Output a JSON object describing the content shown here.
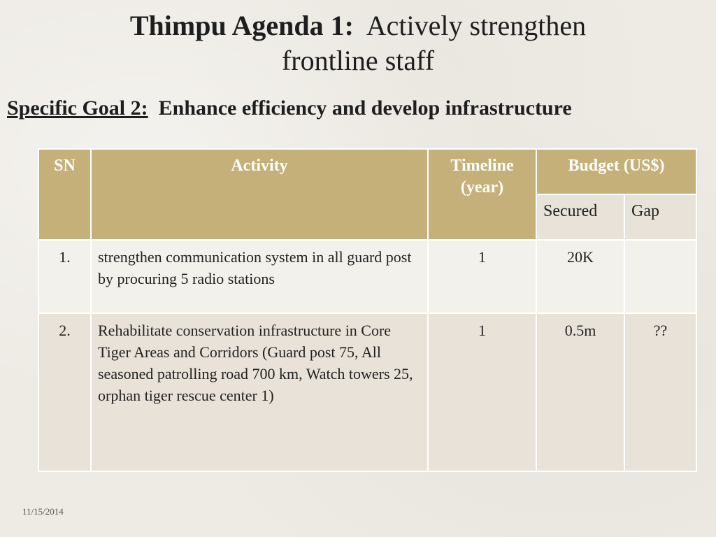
{
  "slide": {
    "title_bold": "Thimpu Agenda 1:",
    "title_rest": "Actively strengthen",
    "title_line2": "frontline staff",
    "subtitle_label": "Specific Goal 2:",
    "subtitle_text": "Enhance efficiency and develop infrastructure",
    "date": "11/15/2014"
  },
  "table": {
    "headers": {
      "sn": "SN",
      "activity": "Activity",
      "timeline_line1": "Timeline",
      "timeline_line2": "(year)",
      "budget": "Budget (US$)",
      "secured": "Secured",
      "gap": "Gap"
    },
    "rows": [
      {
        "sn": "1.",
        "activity": "strengthen communication system in all guard post by procuring 5 radio stations",
        "timeline": "1",
        "secured": "20K",
        "gap": ""
      },
      {
        "sn": "2.",
        "activity": "Rehabilitate conservation infrastructure in Core Tiger Areas and Corridors (Guard post 75, All seasoned patrolling road 700 km, Watch towers 25, orphan tiger rescue center 1)",
        "timeline": "1",
        "secured": "0.5m",
        "gap": "??"
      }
    ]
  }
}
